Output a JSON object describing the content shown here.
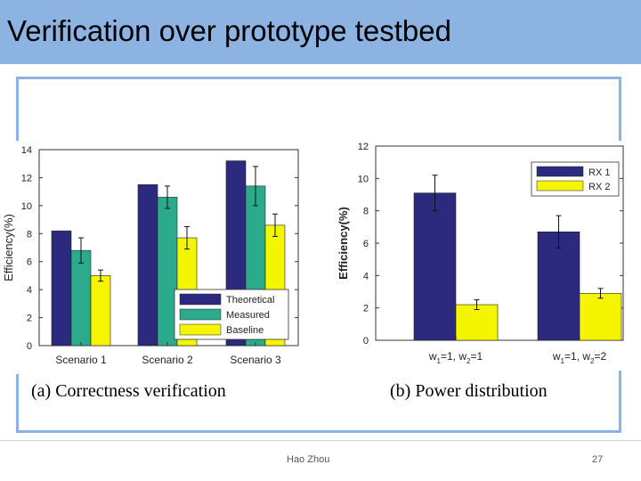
{
  "slide": {
    "title": "Verification over prototype testbed",
    "footer_author": "Hao Zhou",
    "footer_page": "27"
  },
  "colors": {
    "title_bar": "#8db3e2",
    "navy": "#2b2a7f",
    "teal": "#2bab8c",
    "yellow": "#f5f500"
  },
  "chart_data": [
    {
      "type": "bar",
      "caption": "(a) Correctness verification",
      "categories": [
        "Scenario 1",
        "Scenario 2",
        "Scenario 3"
      ],
      "series": [
        {
          "name": "Theoretical",
          "color": "#2b2a7f",
          "values": [
            8.2,
            11.5,
            13.2
          ],
          "errors": [
            0,
            0,
            0
          ]
        },
        {
          "name": "Measured",
          "color": "#2bab8c",
          "values": [
            6.8,
            10.6,
            11.4
          ],
          "errors": [
            0.9,
            0.8,
            1.4
          ]
        },
        {
          "name": "Baseline",
          "color": "#f5f500",
          "values": [
            5.0,
            7.7,
            8.6
          ],
          "errors": [
            0.4,
            0.8,
            0.8
          ]
        }
      ],
      "ylabel": "Efficiency(%)",
      "ylim": [
        0,
        14
      ],
      "yticks": [
        0,
        2,
        4,
        6,
        8,
        10,
        12,
        14
      ],
      "legend": "bottom-right",
      "grid": false
    },
    {
      "type": "bar",
      "caption": "(b) Power distribution",
      "categories": [
        {
          "w1": "1",
          "w2": "1"
        },
        {
          "w1": "1",
          "w2": "2"
        }
      ],
      "series": [
        {
          "name": "RX 1",
          "color": "#2b2a7f",
          "values": [
            9.1,
            6.7
          ],
          "errors": [
            1.1,
            1.0
          ]
        },
        {
          "name": "RX 2",
          "color": "#f5f500",
          "values": [
            2.2,
            2.9
          ],
          "errors": [
            0.3,
            0.3
          ]
        }
      ],
      "ylabel": "Efficiency(%)",
      "ylim": [
        0,
        12
      ],
      "yticks": [
        0,
        2,
        4,
        6,
        8,
        10,
        12
      ],
      "legend": "top-right",
      "grid": false
    }
  ]
}
